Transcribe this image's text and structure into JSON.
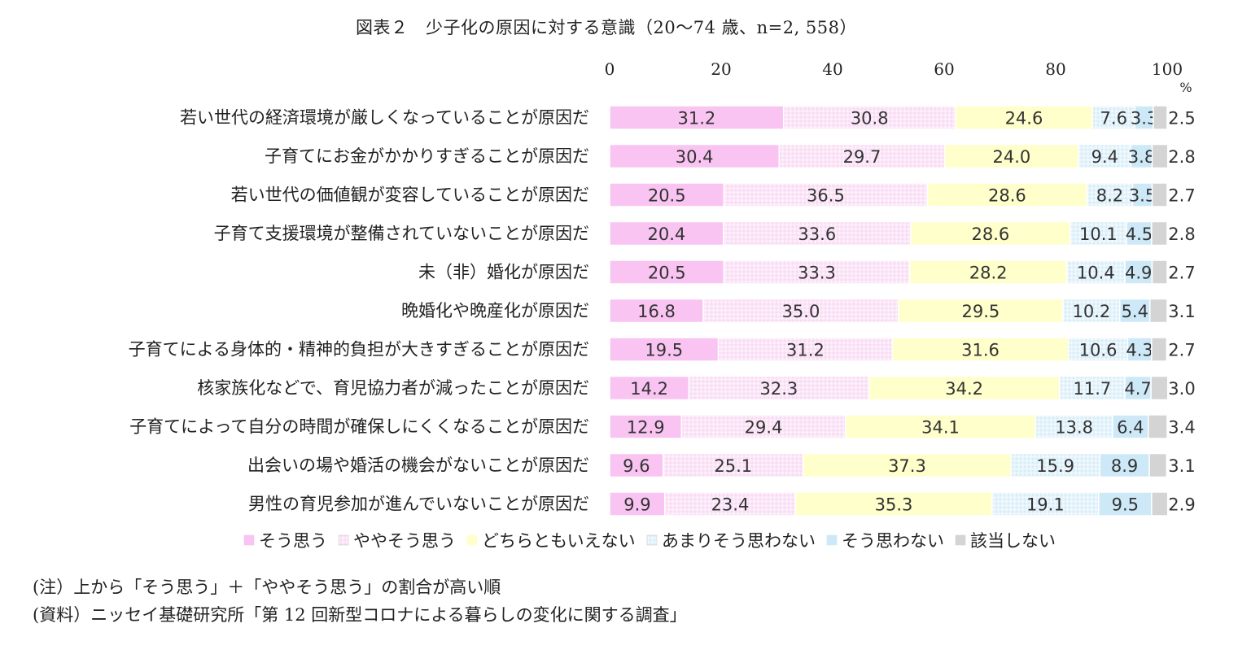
{
  "chart_data": {
    "type": "bar",
    "stacked": true,
    "orientation": "horizontal",
    "title": "図表２　少子化の原因に対する意識（20～74 歳、n=2, 558）",
    "unit": "%",
    "xlim": [
      0,
      100
    ],
    "xticks": [
      "0",
      "20",
      "40",
      "60",
      "80",
      "100"
    ],
    "grid": false,
    "legend_position": "bottom",
    "categories": [
      "若い世代の経済環境が厳しくなっていることが原因だ",
      "子育てにお金がかかりすぎることが原因だ",
      "若い世代の価値観が変容していることが原因だ",
      "子育て支援環境が整備されていないことが原因だ",
      "未（非）婚化が原因だ",
      "晩婚化や晩産化が原因だ",
      "子育てによる身体的・精神的負担が大きすぎることが原因だ",
      "核家族化などで、育児協力者が減ったことが原因だ",
      "子育てによって自分の時間が確保しにくくなることが原因だ",
      "出会いの場や婚活の機会がないことが原因だ",
      "男性の育児参加が進んでいないことが原因だ"
    ],
    "series": [
      {
        "name": "そう思う",
        "color": "#f9c4f2",
        "pattern": "none",
        "values": [
          31.2,
          30.4,
          20.5,
          20.4,
          20.5,
          16.8,
          19.5,
          14.2,
          12.9,
          9.6,
          9.9
        ]
      },
      {
        "name": "ややそう思う",
        "color": "#fbe6f8",
        "pattern": "dots",
        "values": [
          30.8,
          29.7,
          36.5,
          33.6,
          33.3,
          35.0,
          31.2,
          32.3,
          29.4,
          25.1,
          23.4
        ]
      },
      {
        "name": "どちらともいえない",
        "color": "#ffffcc",
        "pattern": "none",
        "values": [
          24.6,
          24.0,
          28.6,
          28.6,
          28.2,
          29.5,
          31.6,
          34.2,
          34.1,
          37.3,
          35.3
        ]
      },
      {
        "name": "あまりそう思わない",
        "color": "#e6f4fb",
        "pattern": "dots",
        "values": [
          7.6,
          9.4,
          8.2,
          10.1,
          10.4,
          10.2,
          10.6,
          11.7,
          13.8,
          15.9,
          19.1
        ]
      },
      {
        "name": "そう思わない",
        "color": "#cde9f8",
        "pattern": "none",
        "values": [
          3.3,
          3.8,
          3.5,
          4.5,
          4.9,
          5.4,
          4.3,
          4.7,
          6.4,
          8.9,
          9.5
        ]
      },
      {
        "name": "該当しない",
        "color": "#d4d4d4",
        "pattern": "none",
        "values": [
          2.5,
          2.8,
          2.7,
          2.8,
          2.7,
          3.1,
          2.7,
          3.0,
          3.4,
          3.1,
          2.9
        ]
      }
    ]
  },
  "notes": {
    "note1": "(注）上から「そう思う」＋「ややそう思う」の割合が高い順",
    "note2": "(資料）ニッセイ基礎研究所「第 12 回新型コロナによる暮らしの変化に関する調査」"
  }
}
